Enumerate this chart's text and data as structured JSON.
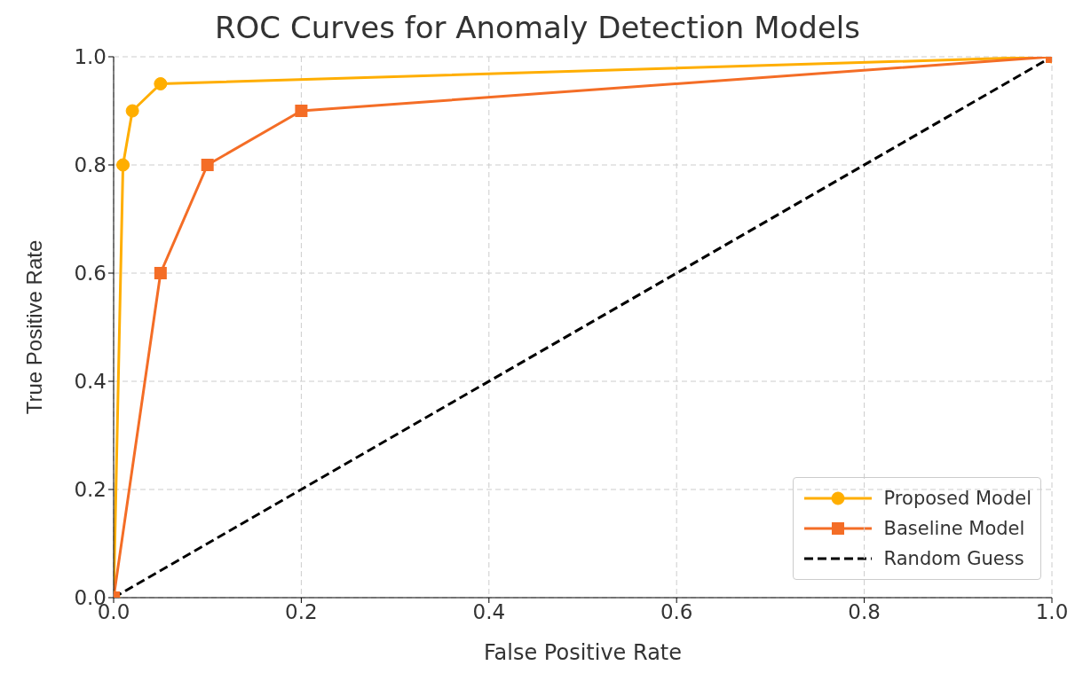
{
  "chart_data": {
    "type": "line",
    "title": "ROC Curves for Anomaly Detection Models",
    "xlabel": "False Positive Rate",
    "ylabel": "True Positive Rate",
    "xlim": [
      0,
      1
    ],
    "ylim": [
      0,
      1
    ],
    "xticks": [
      {
        "value": 0,
        "label": "0.0"
      },
      0.2,
      0.4,
      0.6,
      0.8,
      {
        "value": 1,
        "label": "1.0"
      }
    ],
    "yticks": [
      {
        "value": 0,
        "label": "0.0"
      },
      0.2,
      0.4,
      0.6,
      0.8,
      {
        "value": 1,
        "label": "1.0"
      }
    ],
    "grid": true,
    "legend": "bottom right",
    "series": [
      {
        "name": "Proposed Model",
        "color": "#ffae00",
        "marker": "circle",
        "line_style": "solid",
        "x": [
          0,
          0.01,
          0.02,
          0.05,
          1
        ],
        "values": [
          0,
          0.8,
          0.9,
          0.95,
          1
        ]
      },
      {
        "name": "Baseline Model",
        "color": "#f46d26",
        "marker": "square",
        "line_style": "solid",
        "x": [
          0,
          0.05,
          0.1,
          0.2,
          1
        ],
        "values": [
          0,
          0.6,
          0.8,
          0.9,
          1
        ]
      },
      {
        "name": "Random Guess",
        "color": "#000000",
        "marker": "none",
        "line_style": "dashed",
        "x": [
          0,
          1
        ],
        "values": [
          0,
          1
        ]
      }
    ]
  }
}
